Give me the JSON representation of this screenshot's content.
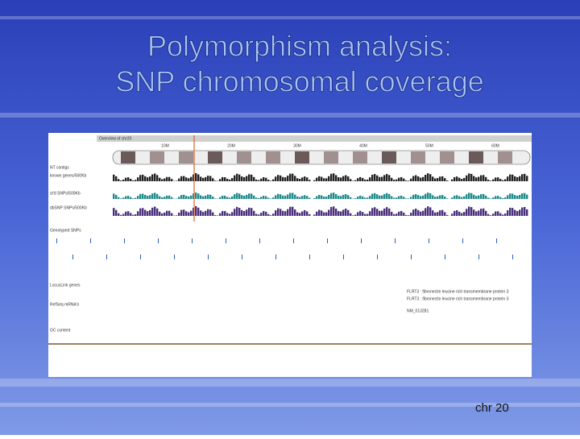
{
  "slide": {
    "title_lines": [
      "Polymorphism analysis:",
      "SNP chromosomal coverage"
    ],
    "footer": "chr 20"
  },
  "browser": {
    "overview_title": "Overview of chr20",
    "scale_labels": [
      "10M",
      "20M",
      "30M",
      "40M",
      "50M",
      "60M"
    ],
    "tracks": [
      "NT contigs",
      "known genes/500Kb",
      "st'd SNPs/500Kb",
      "dbSNP SNPs/500Kb",
      "Genotyped SNPs",
      "LocusLink genes",
      "RefSeq mRNA's",
      "GC content"
    ],
    "annotations": [
      "FLRT3 : fibronectin leucine rich transmembrane protein 3",
      "FLRT3 : fibronectin leucine rich transmembrane protein 3",
      "NM_013281"
    ]
  }
}
